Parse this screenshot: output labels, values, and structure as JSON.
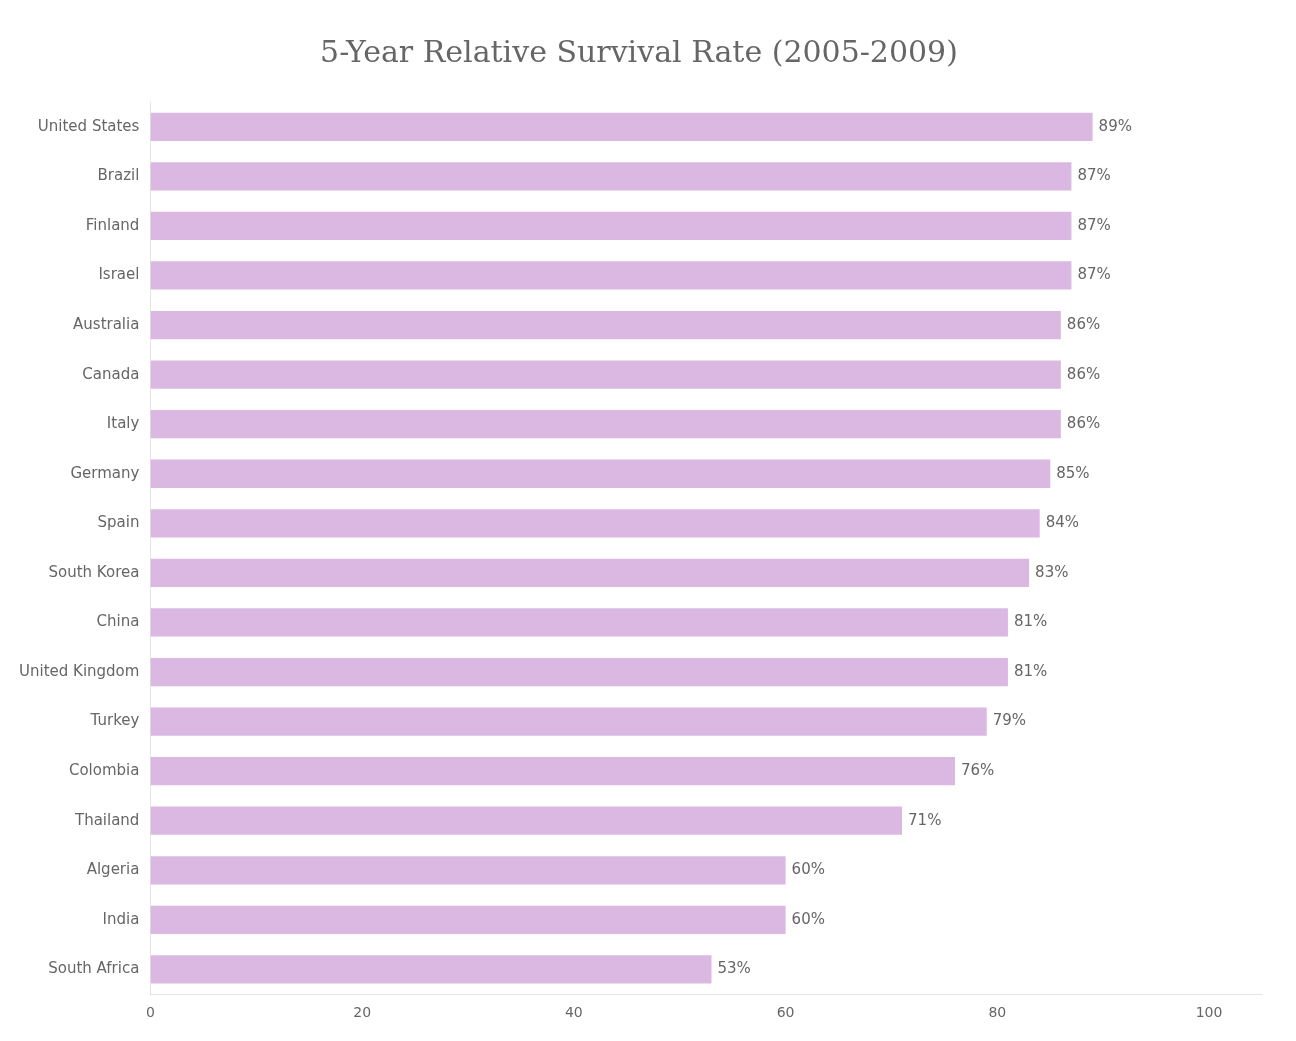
{
  "chart_data": {
    "type": "bar",
    "orientation": "horizontal",
    "title": "5-Year Relative Survival Rate (2005-2009)",
    "categories": [
      "United States",
      "Brazil",
      "Finland",
      "Israel",
      "Australia",
      "Canada",
      "Italy",
      "Germany",
      "Spain",
      "South Korea",
      "China",
      "United Kingdom",
      "Turkey",
      "Colombia",
      "Thailand",
      "Algeria",
      "India",
      "South Africa"
    ],
    "values": [
      89,
      87,
      87,
      87,
      86,
      86,
      86,
      85,
      84,
      83,
      81,
      81,
      79,
      76,
      71,
      60,
      60,
      53
    ],
    "value_labels": [
      "89%",
      "87%",
      "87%",
      "87%",
      "86%",
      "86%",
      "86%",
      "85%",
      "84%",
      "83%",
      "81%",
      "81%",
      "79%",
      "76%",
      "71%",
      "60%",
      "60%",
      "53%"
    ],
    "color": "#dab8e2",
    "xlim": [
      0,
      105
    ],
    "xticks": [
      0,
      20,
      40,
      60,
      80,
      100
    ],
    "grid": false,
    "data_labels": true
  }
}
